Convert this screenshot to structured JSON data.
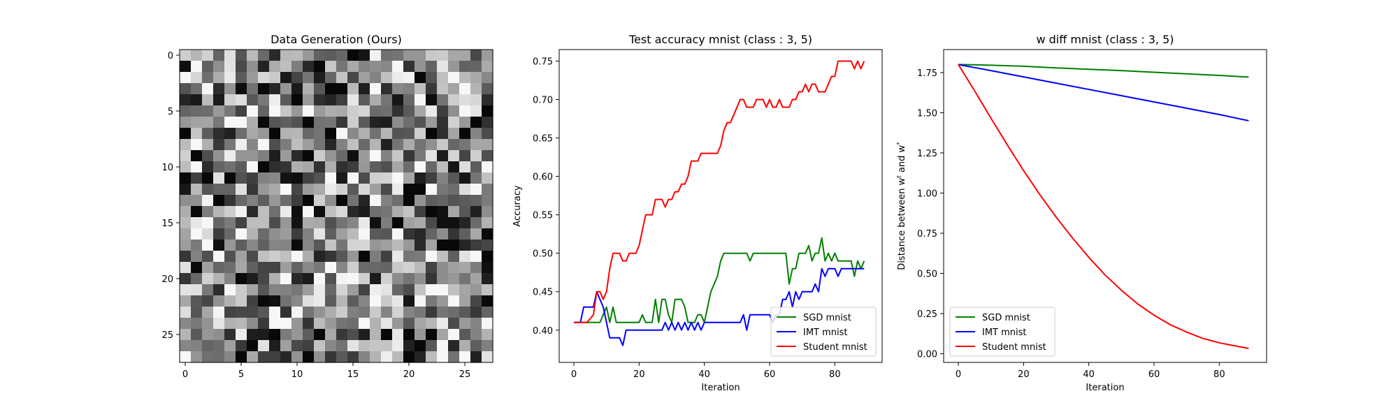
{
  "chart_data": [
    {
      "type": "heatmap",
      "title": "Data Generation (Ours)",
      "colormap": "gray",
      "xlim": [
        -0.5,
        27.5
      ],
      "ylim": [
        27.5,
        -0.5
      ],
      "xticks": [
        0,
        5,
        10,
        15,
        20,
        25
      ],
      "yticks": [
        0,
        5,
        10,
        15,
        20,
        25
      ],
      "rows": 28,
      "cols": 28,
      "value_range": [
        0,
        1
      ]
    },
    {
      "type": "line",
      "title": "Test accuracy mnist (class : 3, 5)",
      "xlabel": "Iteration",
      "ylabel": "Accuracy",
      "xlim": [
        -4.5,
        94.5
      ],
      "ylim": [
        0.358,
        0.765
      ],
      "xticks": [
        0,
        20,
        40,
        60,
        80
      ],
      "yticks": [
        0.4,
        0.45,
        0.5,
        0.55,
        0.6,
        0.65,
        0.7,
        0.75
      ],
      "ytick_labels": [
        "0.40",
        "0.45",
        "0.50",
        "0.55",
        "0.60",
        "0.65",
        "0.70",
        "0.75"
      ],
      "legend_position": "lower-right",
      "series": [
        {
          "name": "SGD mnist",
          "color": "#008000",
          "x": [
            0,
            2,
            4,
            6,
            8,
            10,
            11,
            12,
            13,
            14,
            16,
            18,
            20,
            21,
            22,
            23,
            24,
            25,
            26,
            27,
            28,
            29,
            30,
            31,
            32,
            33,
            34,
            35,
            36,
            37,
            38,
            39,
            40,
            41,
            42,
            43,
            44,
            45,
            46,
            47,
            48,
            49,
            50,
            51,
            52,
            53,
            54,
            55,
            56,
            57,
            58,
            59,
            60,
            61,
            62,
            63,
            64,
            65,
            66,
            67,
            68,
            69,
            70,
            71,
            72,
            73,
            74,
            75,
            76,
            77,
            78,
            79,
            80,
            81,
            82,
            83,
            84,
            85,
            86,
            87,
            88,
            89
          ],
          "values": [
            0.41,
            0.41,
            0.41,
            0.41,
            0.41,
            0.43,
            0.41,
            0.43,
            0.41,
            0.41,
            0.41,
            0.41,
            0.41,
            0.42,
            0.41,
            0.41,
            0.41,
            0.44,
            0.41,
            0.44,
            0.44,
            0.42,
            0.41,
            0.44,
            0.44,
            0.44,
            0.43,
            0.41,
            0.41,
            0.41,
            0.42,
            0.42,
            0.41,
            0.43,
            0.45,
            0.46,
            0.47,
            0.49,
            0.5,
            0.5,
            0.5,
            0.5,
            0.5,
            0.5,
            0.5,
            0.5,
            0.49,
            0.5,
            0.5,
            0.5,
            0.5,
            0.5,
            0.5,
            0.5,
            0.5,
            0.5,
            0.5,
            0.5,
            0.46,
            0.48,
            0.48,
            0.5,
            0.5,
            0.5,
            0.51,
            0.49,
            0.5,
            0.5,
            0.52,
            0.49,
            0.5,
            0.49,
            0.5,
            0.49,
            0.49,
            0.49,
            0.49,
            0.49,
            0.47,
            0.49,
            0.48,
            0.49
          ]
        },
        {
          "name": "IMT mnist",
          "color": "#0000ff",
          "x": [
            0,
            2,
            3,
            4,
            5,
            6,
            7,
            8,
            9,
            10,
            11,
            12,
            13,
            14,
            15,
            16,
            17,
            18,
            20,
            22,
            24,
            26,
            27,
            28,
            29,
            30,
            31,
            32,
            33,
            34,
            35,
            36,
            37,
            38,
            39,
            40,
            41,
            42,
            43,
            44,
            45,
            46,
            47,
            48,
            49,
            50,
            51,
            52,
            53,
            54,
            55,
            56,
            57,
            58,
            59,
            60,
            61,
            62,
            63,
            64,
            65,
            66,
            67,
            68,
            69,
            70,
            71,
            72,
            73,
            74,
            75,
            76,
            77,
            78,
            79,
            80,
            81,
            82,
            83,
            84,
            85,
            86,
            87,
            88,
            89
          ],
          "values": [
            0.41,
            0.41,
            0.43,
            0.43,
            0.43,
            0.43,
            0.45,
            0.44,
            0.43,
            0.41,
            0.39,
            0.39,
            0.39,
            0.39,
            0.38,
            0.4,
            0.4,
            0.4,
            0.4,
            0.4,
            0.4,
            0.4,
            0.4,
            0.41,
            0.4,
            0.41,
            0.4,
            0.41,
            0.4,
            0.41,
            0.4,
            0.41,
            0.4,
            0.41,
            0.4,
            0.41,
            0.41,
            0.41,
            0.41,
            0.41,
            0.41,
            0.41,
            0.41,
            0.41,
            0.41,
            0.41,
            0.41,
            0.42,
            0.4,
            0.42,
            0.42,
            0.42,
            0.42,
            0.42,
            0.42,
            0.42,
            0.41,
            0.42,
            0.42,
            0.44,
            0.44,
            0.45,
            0.43,
            0.45,
            0.44,
            0.45,
            0.45,
            0.45,
            0.45,
            0.46,
            0.45,
            0.48,
            0.47,
            0.48,
            0.48,
            0.48,
            0.47,
            0.48,
            0.48,
            0.48,
            0.48,
            0.48,
            0.48,
            0.48,
            0.48
          ]
        },
        {
          "name": "Student mnist",
          "color": "#ff0000",
          "x": [
            0,
            2,
            4,
            6,
            7,
            8,
            9,
            10,
            11,
            12,
            13,
            14,
            15,
            16,
            17,
            18,
            19,
            20,
            21,
            22,
            23,
            24,
            25,
            26,
            27,
            28,
            29,
            30,
            31,
            32,
            33,
            34,
            35,
            36,
            37,
            38,
            39,
            40,
            41,
            42,
            43,
            44,
            45,
            46,
            47,
            48,
            49,
            50,
            51,
            52,
            53,
            54,
            55,
            56,
            57,
            58,
            59,
            60,
            61,
            62,
            63,
            64,
            65,
            66,
            67,
            68,
            69,
            70,
            71,
            72,
            73,
            74,
            75,
            76,
            77,
            78,
            79,
            80,
            81,
            82,
            83,
            84,
            85,
            86,
            87,
            88,
            89
          ],
          "values": [
            0.41,
            0.41,
            0.41,
            0.42,
            0.45,
            0.45,
            0.44,
            0.45,
            0.48,
            0.5,
            0.5,
            0.5,
            0.49,
            0.49,
            0.5,
            0.5,
            0.5,
            0.51,
            0.53,
            0.55,
            0.55,
            0.55,
            0.57,
            0.57,
            0.57,
            0.56,
            0.57,
            0.57,
            0.58,
            0.58,
            0.59,
            0.59,
            0.6,
            0.62,
            0.62,
            0.62,
            0.63,
            0.63,
            0.63,
            0.63,
            0.63,
            0.63,
            0.64,
            0.66,
            0.67,
            0.67,
            0.68,
            0.69,
            0.7,
            0.7,
            0.69,
            0.69,
            0.69,
            0.7,
            0.7,
            0.7,
            0.69,
            0.7,
            0.69,
            0.69,
            0.7,
            0.69,
            0.69,
            0.69,
            0.7,
            0.7,
            0.71,
            0.71,
            0.72,
            0.71,
            0.72,
            0.72,
            0.71,
            0.71,
            0.71,
            0.72,
            0.73,
            0.73,
            0.75,
            0.75,
            0.75,
            0.75,
            0.75,
            0.74,
            0.75,
            0.74,
            0.75
          ]
        }
      ]
    },
    {
      "type": "line",
      "title": "w diff mnist (class : 3, 5)",
      "xlabel": "Iteration",
      "ylabel": "Distance between w^t and w^*",
      "xlim": [
        -4.5,
        94.5
      ],
      "ylim": [
        -0.054,
        1.893
      ],
      "xticks": [
        0,
        20,
        40,
        60,
        80
      ],
      "yticks": [
        0.0,
        0.25,
        0.5,
        0.75,
        1.0,
        1.25,
        1.5,
        1.75
      ],
      "ytick_labels": [
        "0.00",
        "0.25",
        "0.50",
        "0.75",
        "1.00",
        "1.25",
        "1.50",
        "1.75"
      ],
      "legend_position": "lower-left",
      "series": [
        {
          "name": "SGD mnist",
          "color": "#008000",
          "x": [
            0,
            10,
            20,
            30,
            40,
            50,
            60,
            70,
            80,
            89
          ],
          "values": [
            1.8,
            1.796,
            1.789,
            1.779,
            1.77,
            1.762,
            1.752,
            1.742,
            1.732,
            1.722
          ]
        },
        {
          "name": "IMT mnist",
          "color": "#0000ff",
          "x": [
            0,
            10,
            20,
            30,
            40,
            50,
            60,
            70,
            80,
            89
          ],
          "values": [
            1.8,
            1.762,
            1.723,
            1.684,
            1.645,
            1.606,
            1.567,
            1.528,
            1.489,
            1.45
          ]
        },
        {
          "name": "Student mnist",
          "color": "#ff0000",
          "x": [
            0,
            5,
            10,
            15,
            20,
            25,
            30,
            35,
            40,
            45,
            50,
            55,
            60,
            65,
            70,
            75,
            80,
            85,
            89
          ],
          "values": [
            1.8,
            1.636,
            1.466,
            1.3,
            1.14,
            0.99,
            0.85,
            0.72,
            0.6,
            0.49,
            0.395,
            0.31,
            0.24,
            0.18,
            0.135,
            0.095,
            0.068,
            0.048,
            0.033
          ]
        }
      ]
    }
  ]
}
